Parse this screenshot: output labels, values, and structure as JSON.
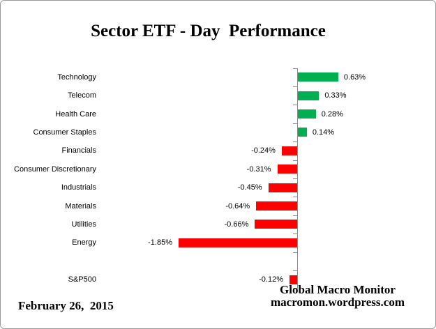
{
  "title": "Sector ETF - Day  Performance",
  "chart_data": {
    "type": "bar",
    "orientation": "horizontal",
    "title": "Sector ETF - Day  Performance",
    "categories": [
      "Technology",
      "Telecom",
      "Health Care",
      "Consumer Staples",
      "Financials",
      "Consumer Discretionary",
      "Industrials",
      "Materials",
      "Utilities",
      "Energy",
      "",
      "S&P500"
    ],
    "values": [
      0.63,
      0.33,
      0.28,
      0.14,
      -0.24,
      -0.31,
      -0.45,
      -0.64,
      -0.66,
      -1.85,
      null,
      -0.12
    ],
    "value_labels": [
      "0.63%",
      "0.33%",
      "0.28%",
      "0.14%",
      "-0.24%",
      "-0.31%",
      "-0.45%",
      "-0.64%",
      "-0.66%",
      "-1.85%",
      "",
      "-0.12%"
    ],
    "xlabel": "",
    "ylabel": "",
    "gridlines": false,
    "legend": false,
    "positive_color": "#00B050",
    "negative_color": "#FF0000",
    "axis_color": "#8a8a8a",
    "baseline_value": 0
  },
  "footer": {
    "date": "February 26,  2015",
    "source_name": "Global Macro Monitor",
    "source_url": "macromon.wordpress.com"
  }
}
